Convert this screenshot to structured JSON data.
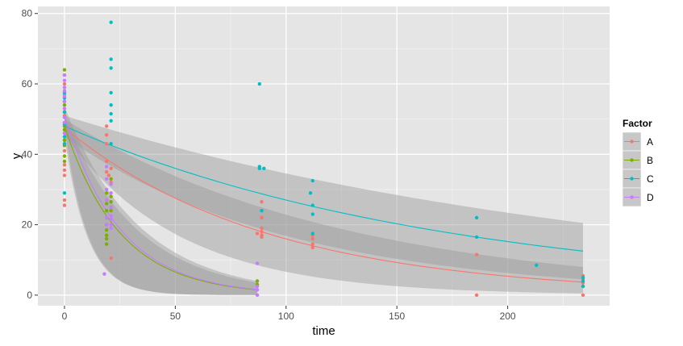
{
  "chart_data": {
    "type": "scatter",
    "title": "",
    "xlabel": "time",
    "ylabel": "y",
    "xlim": [
      -12,
      246
    ],
    "ylim": [
      -3,
      82
    ],
    "x_ticks": [
      0,
      50,
      100,
      150,
      200
    ],
    "y_ticks": [
      0,
      20,
      40,
      60,
      80
    ],
    "grid": true,
    "legend": {
      "title": "Factor",
      "position": "right"
    },
    "series": [
      {
        "name": "A",
        "color": "#F8766D",
        "points": [
          [
            0,
            25.5
          ],
          [
            0,
            27
          ],
          [
            0,
            34
          ],
          [
            0,
            35.5
          ],
          [
            0,
            37
          ],
          [
            0,
            41
          ],
          [
            0,
            44
          ],
          [
            0,
            46
          ],
          [
            0,
            49
          ],
          [
            0,
            51
          ],
          [
            0,
            53
          ],
          [
            0,
            55
          ],
          [
            0,
            57
          ],
          [
            0,
            59
          ],
          [
            0,
            60
          ],
          [
            19,
            48
          ],
          [
            19,
            45.5
          ],
          [
            19,
            43
          ],
          [
            19,
            38
          ],
          [
            19,
            35
          ],
          [
            20,
            34
          ],
          [
            21,
            32
          ],
          [
            21,
            36
          ],
          [
            21,
            10.5
          ],
          [
            89,
            26.5
          ],
          [
            89,
            22
          ],
          [
            89,
            19
          ],
          [
            89,
            18
          ],
          [
            89,
            17
          ],
          [
            89,
            16.5
          ],
          [
            87,
            17.5
          ],
          [
            112,
            17
          ],
          [
            112,
            16
          ],
          [
            112,
            14.5
          ],
          [
            112,
            13.5
          ],
          [
            186,
            11.5
          ],
          [
            186,
            0
          ],
          [
            234,
            5.5
          ],
          [
            234,
            4.5
          ],
          [
            234,
            3.5
          ],
          [
            234,
            2.5
          ],
          [
            234,
            0
          ]
        ],
        "fit": {
          "start": 47.5,
          "end": 3.7
        },
        "band": {
          "start_low": 45.5,
          "start_high": 50,
          "end_low": 0.5,
          "end_high": 8
        }
      },
      {
        "name": "B",
        "color": "#7CAE00",
        "points": [
          [
            0,
            64
          ],
          [
            0,
            62.5
          ],
          [
            0,
            55
          ],
          [
            0,
            54
          ],
          [
            0,
            52
          ],
          [
            0,
            50.5
          ],
          [
            0,
            49
          ],
          [
            0,
            48
          ],
          [
            0,
            47
          ],
          [
            0,
            44
          ],
          [
            0,
            42.5
          ],
          [
            0,
            39.5
          ],
          [
            0,
            38
          ],
          [
            19,
            29
          ],
          [
            19,
            26
          ],
          [
            19,
            24
          ],
          [
            19,
            22
          ],
          [
            19,
            20
          ],
          [
            19,
            18.5
          ],
          [
            19,
            17
          ],
          [
            19,
            16
          ],
          [
            19,
            14.5
          ],
          [
            21,
            33
          ],
          [
            21,
            28
          ],
          [
            21,
            26.5
          ],
          [
            21,
            25
          ],
          [
            21,
            24
          ],
          [
            87,
            4
          ],
          [
            87,
            3
          ]
        ],
        "fit": {
          "start": 48,
          "end": 1.5
        },
        "band": {
          "start_low": 45,
          "start_high": 51,
          "end_low": 0,
          "end_high": 3.5
        }
      },
      {
        "name": "C",
        "color": "#00BFC4",
        "points": [
          [
            0,
            57.5
          ],
          [
            0,
            56
          ],
          [
            0,
            52
          ],
          [
            0,
            48.5
          ],
          [
            0,
            45
          ],
          [
            0,
            43
          ],
          [
            0,
            29
          ],
          [
            21,
            77.5
          ],
          [
            21,
            67
          ],
          [
            21,
            64.5
          ],
          [
            21,
            57.5
          ],
          [
            21,
            54
          ],
          [
            21,
            51.5
          ],
          [
            21,
            49.5
          ],
          [
            21,
            43
          ],
          [
            88,
            60
          ],
          [
            88,
            36.5
          ],
          [
            88,
            36
          ],
          [
            90,
            36
          ],
          [
            89,
            24
          ],
          [
            111,
            29
          ],
          [
            112,
            32.5
          ],
          [
            112,
            25.5
          ],
          [
            112,
            23
          ],
          [
            112,
            17.5
          ],
          [
            186,
            22
          ],
          [
            186,
            16.5
          ],
          [
            213,
            8.5
          ],
          [
            234,
            5
          ],
          [
            234,
            4
          ],
          [
            234,
            2.5
          ]
        ],
        "fit": {
          "start": 48,
          "end": 12.5
        },
        "band": {
          "start_low": 45,
          "start_high": 51,
          "end_low": 4.5,
          "end_high": 20.5
        }
      },
      {
        "name": "D",
        "color": "#C77CFF",
        "points": [
          [
            0,
            62.5
          ],
          [
            0,
            61
          ],
          [
            0,
            59
          ],
          [
            0,
            58
          ],
          [
            0,
            56.5
          ],
          [
            0,
            55
          ],
          [
            0,
            53
          ],
          [
            0,
            50.5
          ],
          [
            0,
            49
          ],
          [
            0,
            46
          ],
          [
            19,
            36.5
          ],
          [
            19,
            33
          ],
          [
            19,
            30
          ],
          [
            19,
            27
          ],
          [
            19,
            22
          ],
          [
            19,
            20
          ],
          [
            18,
            6
          ],
          [
            21,
            31.5
          ],
          [
            21,
            29
          ],
          [
            21,
            25
          ],
          [
            21,
            22.5
          ],
          [
            21,
            21.5
          ],
          [
            21,
            20
          ],
          [
            21,
            19
          ],
          [
            87,
            9
          ],
          [
            87,
            2.5
          ],
          [
            87,
            1.5
          ],
          [
            87,
            0
          ]
        ],
        "fit": {
          "start": 51,
          "end": 1.6
        },
        "band": {
          "start_low": 48,
          "start_high": 53.5,
          "end_low": 0,
          "end_high": 4
        }
      }
    ]
  }
}
